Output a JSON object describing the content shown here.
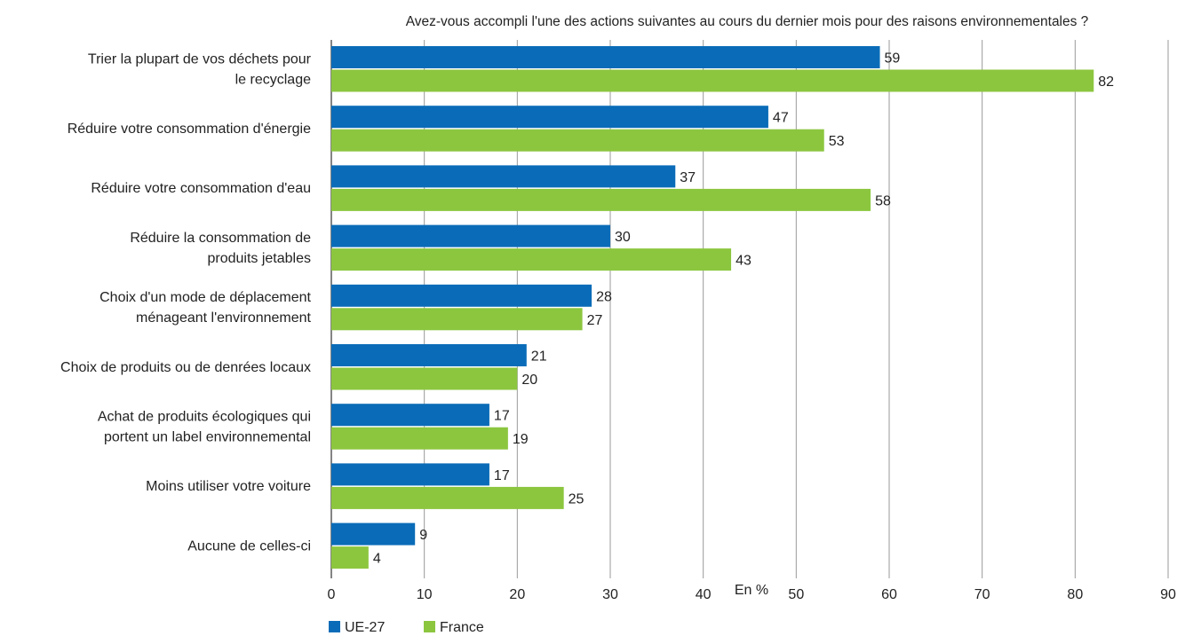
{
  "chart_data": {
    "type": "bar",
    "orientation": "horizontal",
    "title": "Avez-vous accompli l'une des actions suivantes au cours du dernier mois pour des raisons environnementales ?",
    "xlabel": "En %",
    "ylabel": "",
    "xlim": [
      0,
      90
    ],
    "xticks": [
      0,
      10,
      20,
      30,
      40,
      50,
      60,
      70,
      80,
      90
    ],
    "grid": "vertical",
    "legend_position": "bottom-left",
    "categories": [
      [
        "Trier la plupart de vos déchets pour",
        "le recyclage"
      ],
      [
        "Réduire votre consommation d'énergie"
      ],
      [
        "Réduire votre consommation d'eau"
      ],
      [
        "Réduire la consommation de",
        "produits jetables"
      ],
      [
        "Choix d'un mode de déplacement",
        "ménageant l'environnement"
      ],
      [
        "Choix de produits ou de denrées locaux"
      ],
      [
        "Achat de produits écologiques qui",
        "portent un label environnemental"
      ],
      [
        "Moins utiliser votre voiture"
      ],
      [
        "Aucune de celles-ci"
      ]
    ],
    "series": [
      {
        "name": "UE-27",
        "color": "#0a6cb8",
        "values": [
          59,
          47,
          37,
          30,
          28,
          21,
          17,
          17,
          9
        ]
      },
      {
        "name": "France",
        "color": "#8cc63f",
        "values": [
          82,
          53,
          58,
          43,
          27,
          20,
          19,
          25,
          4
        ]
      }
    ]
  }
}
